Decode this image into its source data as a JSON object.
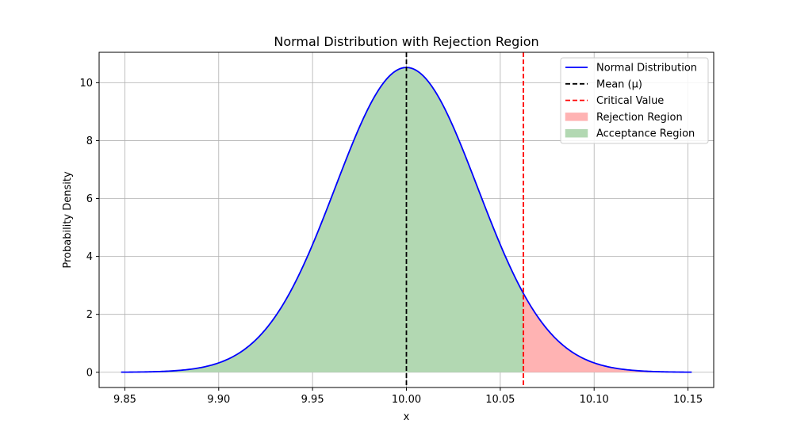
{
  "chart_data": {
    "type": "line",
    "title": "Normal Distribution with Rejection Region",
    "xlabel": "x",
    "ylabel": "Probability Density",
    "xlim": [
      9.8363,
      10.1637
    ],
    "ylim": [
      -0.526,
      11.05
    ],
    "xticks": [
      9.85,
      9.9,
      9.95,
      10.0,
      10.05,
      10.1,
      10.15
    ],
    "xtick_labels": [
      "9.85",
      "9.90",
      "9.95",
      "10.00",
      "10.05",
      "10.10",
      "10.15"
    ],
    "yticks": [
      0,
      2,
      4,
      6,
      8,
      10
    ],
    "ytick_labels": [
      "0",
      "2",
      "4",
      "6",
      "8",
      "10"
    ],
    "grid": true,
    "legend_position": "top-right",
    "distribution": {
      "mean": 10.0,
      "std": 0.0379,
      "x_range": [
        9.848,
        10.152
      ]
    },
    "mean_line_x": 10.0,
    "critical_value": 10.0623,
    "series": [
      {
        "name": "Normal Distribution",
        "kind": "line",
        "color": "#0000ff",
        "style": "solid"
      },
      {
        "name": "Mean (μ)",
        "kind": "line",
        "color": "#000000",
        "style": "dashed"
      },
      {
        "name": "Critical Value",
        "kind": "line",
        "color": "#ff0000",
        "style": "dashed"
      },
      {
        "name": "Rejection Region",
        "kind": "area",
        "color": "#ffb3b3"
      },
      {
        "name": "Acceptance Region",
        "kind": "area",
        "color": "#b2d8b2"
      }
    ]
  }
}
